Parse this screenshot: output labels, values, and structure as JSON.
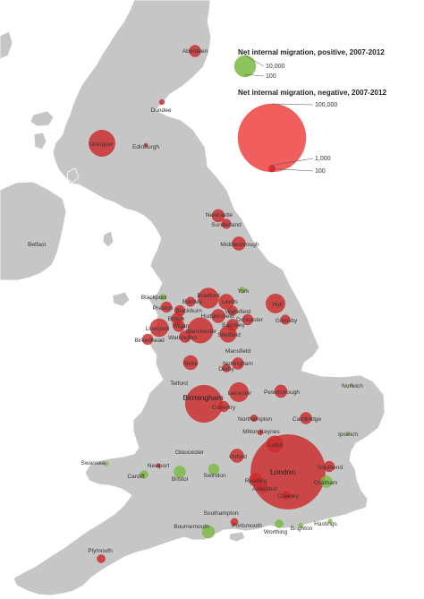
{
  "colors": {
    "land": "#c6c6c6",
    "coast": "#ffffff",
    "sea": "#ffffff",
    "positive": "#7bb941",
    "negative": "#cc2b2b",
    "legend_negative": "#ee4d4d"
  },
  "legend": {
    "positive": {
      "title": "Net internal migration, positive, 2007-2012",
      "sizes": [
        {
          "value": 10000,
          "label": "10,000"
        },
        {
          "value": 100,
          "label": "100"
        }
      ]
    },
    "negative": {
      "title": "Net internal migration, negative, 2007-2012",
      "sizes": [
        {
          "value": 100000,
          "label": "100,000"
        },
        {
          "value": 1000,
          "label": "1,000"
        },
        {
          "value": 100,
          "label": "100"
        }
      ]
    }
  },
  "places": [
    {
      "name": "Belfast",
      "sign": null,
      "magnitude": 0
    },
    {
      "name": "Aberdeen",
      "sign": "negative",
      "magnitude": 3000
    },
    {
      "name": "Dundee",
      "sign": "negative",
      "magnitude": 600
    },
    {
      "name": "Glasgow",
      "sign": "negative",
      "magnitude": 15000
    },
    {
      "name": "Edinburgh",
      "sign": "negative",
      "magnitude": 300
    },
    {
      "name": "Newcastle",
      "sign": "negative",
      "magnitude": 3500
    },
    {
      "name": "Sunderland",
      "sign": "negative",
      "magnitude": 2000
    },
    {
      "name": "Middlesbrough",
      "sign": "negative",
      "magnitude": 4000
    },
    {
      "name": "York",
      "sign": "positive",
      "magnitude": 800
    },
    {
      "name": "Blackpool",
      "sign": "positive",
      "magnitude": 800
    },
    {
      "name": "Preston",
      "sign": "negative",
      "magnitude": 2500
    },
    {
      "name": "Burnley",
      "sign": "negative",
      "magnitude": 2000
    },
    {
      "name": "Bradford",
      "sign": "negative",
      "magnitude": 9000
    },
    {
      "name": "Leeds",
      "sign": "negative",
      "magnitude": 5000
    },
    {
      "name": "Blackburn",
      "sign": "negative",
      "magnitude": 2500
    },
    {
      "name": "Wakefield",
      "sign": "negative",
      "magnitude": 2000
    },
    {
      "name": "Bolton",
      "sign": "negative",
      "magnitude": 3000
    },
    {
      "name": "Huddersfield",
      "sign": "negative",
      "magnitude": 4000
    },
    {
      "name": "Wigan",
      "sign": "negative",
      "magnitude": 3000
    },
    {
      "name": "Barnsley",
      "sign": "negative",
      "magnitude": 3000
    },
    {
      "name": "Doncaster",
      "sign": "negative",
      "magnitude": 2500
    },
    {
      "name": "Hull",
      "sign": "negative",
      "magnitude": 8000
    },
    {
      "name": "Grimsby",
      "sign": "negative",
      "magnitude": 2000
    },
    {
      "name": "Liverpool",
      "sign": "negative",
      "magnitude": 7000
    },
    {
      "name": "Manchester",
      "sign": "negative",
      "magnitude": 14000
    },
    {
      "name": "Warrington",
      "sign": "negative",
      "magnitude": 3000
    },
    {
      "name": "Sheffield",
      "sign": "negative",
      "magnitude": 6000
    },
    {
      "name": "Birkenhead",
      "sign": "negative",
      "magnitude": 2500
    },
    {
      "name": "Mansfield",
      "sign": null,
      "magnitude": 0
    },
    {
      "name": "Nottingham",
      "sign": "negative",
      "magnitude": 3000
    },
    {
      "name": "Derby",
      "sign": "negative",
      "magnitude": 1500
    },
    {
      "name": "Stoke",
      "sign": "negative",
      "magnitude": 4500
    },
    {
      "name": "Telford",
      "sign": null,
      "magnitude": 0
    },
    {
      "name": "Leicester",
      "sign": "negative",
      "magnitude": 8000
    },
    {
      "name": "Peterborough",
      "sign": "negative",
      "magnitude": 3500
    },
    {
      "name": "Norwich",
      "sign": "positive",
      "magnitude": 300
    },
    {
      "name": "Birmingham",
      "sign": "negative",
      "magnitude": 30000
    },
    {
      "name": "Coventry",
      "sign": "negative",
      "magnitude": 2500
    },
    {
      "name": "Northampton",
      "sign": "negative",
      "magnitude": 1000
    },
    {
      "name": "Cambridge",
      "sign": "negative",
      "magnitude": 3000
    },
    {
      "name": "Milton Keynes",
      "sign": "negative",
      "magnitude": 600
    },
    {
      "name": "Ipswich",
      "sign": "positive",
      "magnitude": 300
    },
    {
      "name": "Gloucester",
      "sign": null,
      "magnitude": 0
    },
    {
      "name": "Luton",
      "sign": "negative",
      "magnitude": 6000
    },
    {
      "name": "Oxford",
      "sign": "negative",
      "magnitude": 4000
    },
    {
      "name": "Swansea",
      "sign": "positive",
      "magnitude": 400
    },
    {
      "name": "Newport",
      "sign": "negative",
      "magnitude": 400
    },
    {
      "name": "Cardiff",
      "sign": "positive",
      "magnitude": 1500
    },
    {
      "name": "Bristol",
      "sign": "positive",
      "magnitude": 3000
    },
    {
      "name": "Swindon",
      "sign": "positive",
      "magnitude": 2500
    },
    {
      "name": "London",
      "sign": "negative",
      "magnitude": 120000
    },
    {
      "name": "Southend",
      "sign": "negative",
      "magnitude": 2500
    },
    {
      "name": "Reading",
      "sign": "negative",
      "magnitude": 4000
    },
    {
      "name": "Aldershot",
      "sign": "negative",
      "magnitude": 2000
    },
    {
      "name": "Chatham",
      "sign": "positive",
      "magnitude": 3000
    },
    {
      "name": "Crawley",
      "sign": "negative",
      "magnitude": 1500
    },
    {
      "name": "Southampton",
      "sign": null,
      "magnitude": 0
    },
    {
      "name": "Bournemouth",
      "sign": "positive",
      "magnitude": 3500
    },
    {
      "name": "Portsmouth",
      "sign": "negative",
      "magnitude": 1200
    },
    {
      "name": "Worthing",
      "sign": "positive",
      "magnitude": 1500
    },
    {
      "name": "Brighton",
      "sign": "positive",
      "magnitude": 500
    },
    {
      "name": "Hastings",
      "sign": "positive",
      "magnitude": 400
    },
    {
      "name": "Plymouth",
      "sign": "negative",
      "magnitude": 1500
    }
  ]
}
